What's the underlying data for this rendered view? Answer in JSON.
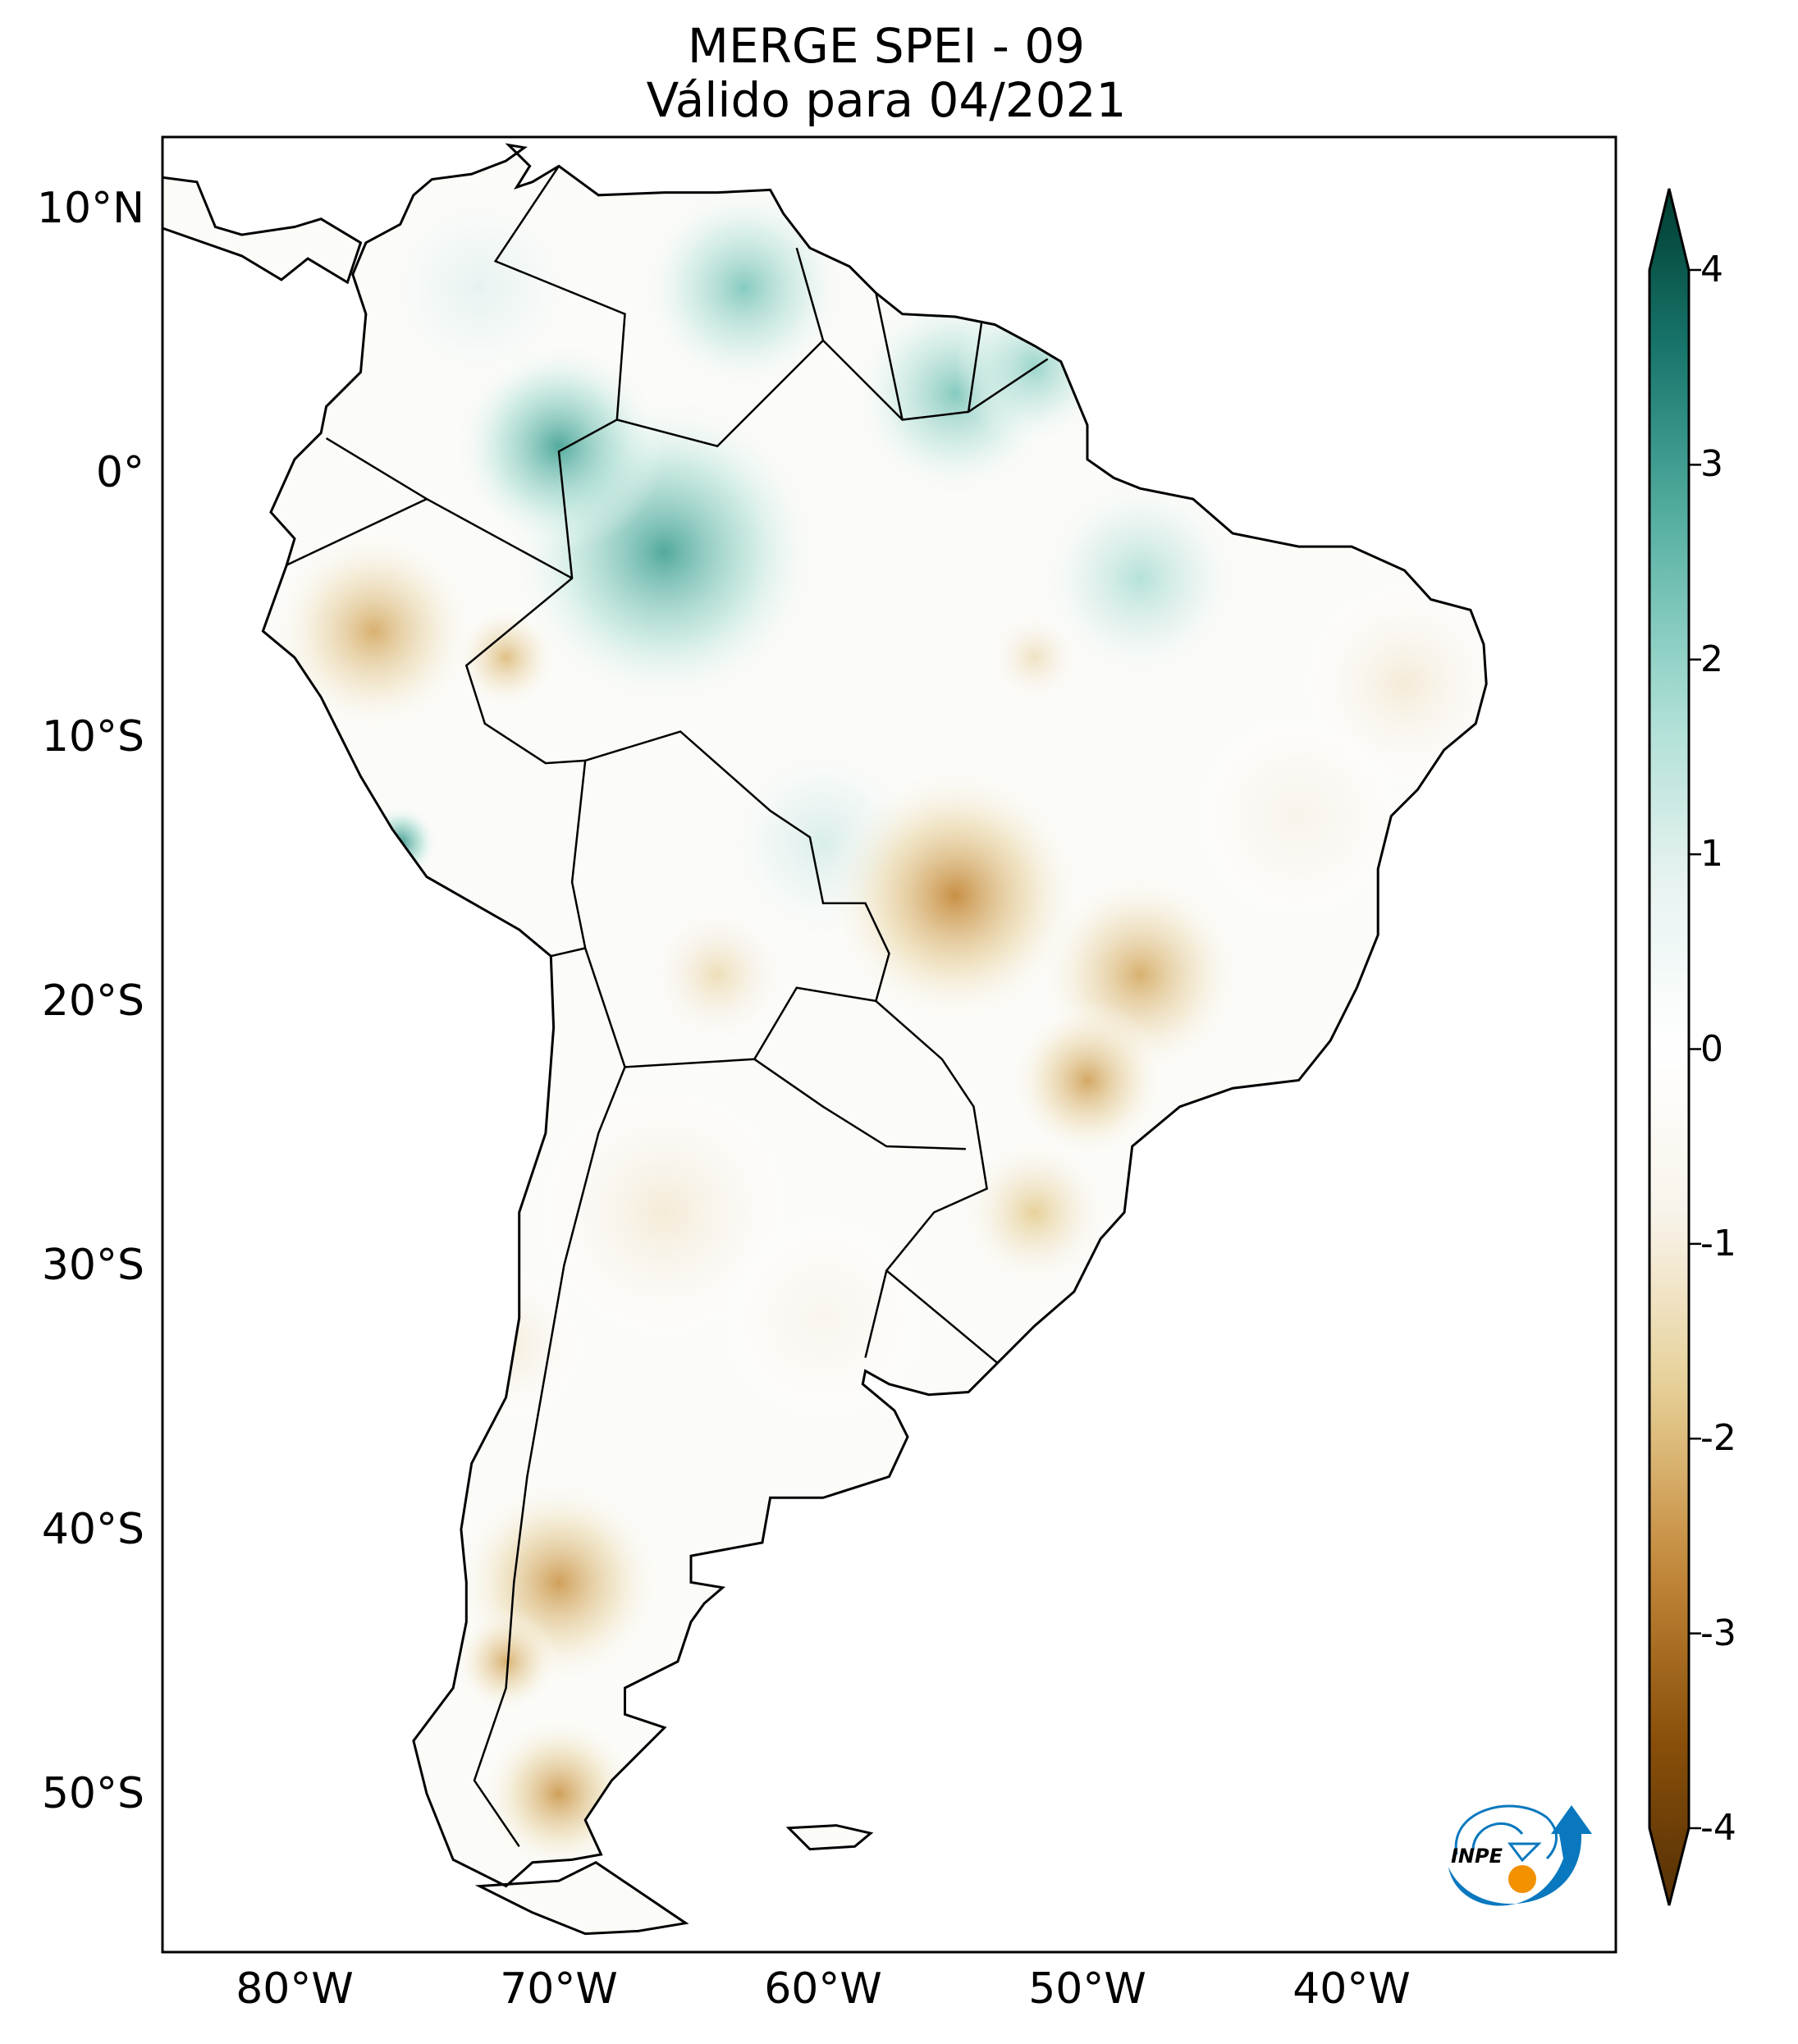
{
  "title": "MERGE   SPEI - 09",
  "subtitle": "Válido para 04/2021",
  "map": {
    "variable": "SPEI - 09",
    "source": "MERGE",
    "valid_date": "04/2021",
    "extent_lon": [
      -85,
      -30
    ],
    "extent_lat": [
      -56,
      12.7
    ]
  },
  "lat_labels": [
    {
      "value": 10,
      "label": "10°N"
    },
    {
      "value": 0,
      "label": "0°"
    },
    {
      "value": -10,
      "label": "10°S"
    },
    {
      "value": -20,
      "label": "20°S"
    },
    {
      "value": -30,
      "label": "30°S"
    },
    {
      "value": -40,
      "label": "40°S"
    },
    {
      "value": -50,
      "label": "50°S"
    }
  ],
  "lon_labels": [
    {
      "value": -80,
      "label": "80°W"
    },
    {
      "value": -70,
      "label": "70°W"
    },
    {
      "value": -60,
      "label": "60°W"
    },
    {
      "value": -50,
      "label": "50°W"
    },
    {
      "value": -40,
      "label": "40°W"
    }
  ],
  "colorbar": {
    "min": -4,
    "max": 4,
    "extend": "both",
    "ticks": [
      {
        "value": 4,
        "label": "4"
      },
      {
        "value": 3,
        "label": "3"
      },
      {
        "value": 2,
        "label": "2"
      },
      {
        "value": 1,
        "label": "1"
      },
      {
        "value": 0,
        "label": "0"
      },
      {
        "value": -1,
        "label": "-1"
      },
      {
        "value": -2,
        "label": "-2"
      },
      {
        "value": -3,
        "label": "-3"
      },
      {
        "value": -4,
        "label": "-4"
      }
    ],
    "colors": [
      "#543005",
      "#8c510a",
      "#c58a3c",
      "#e6cf95",
      "#f8f3ea",
      "#ffffff",
      "#e6f2f0",
      "#a8ddd3",
      "#5ab3a5",
      "#1a7a70",
      "#003c30"
    ]
  },
  "logo": {
    "text": "INPE",
    "blue": "#0a78be",
    "orange": "#f39200"
  }
}
